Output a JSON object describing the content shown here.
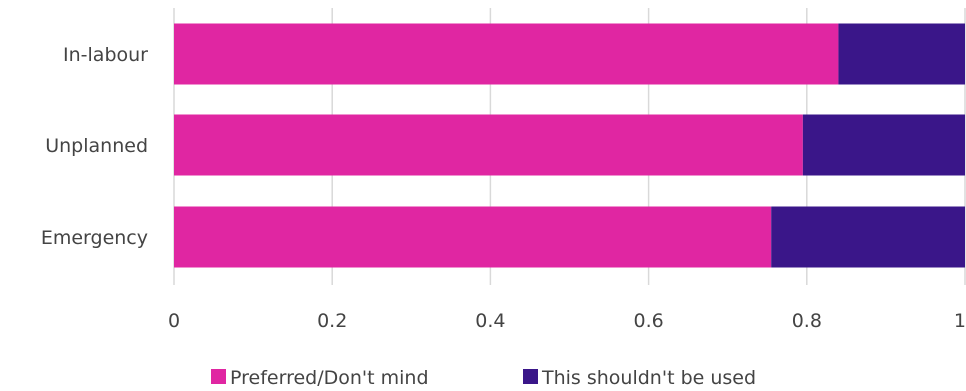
{
  "chart_data": {
    "type": "bar",
    "orientation": "horizontal",
    "stacked": true,
    "categories": [
      "In-labour",
      "Unplanned",
      "Emergency"
    ],
    "series": [
      {
        "name": "Preferred/Don't mind",
        "values": [
          0.84,
          0.795,
          0.755
        ],
        "color": "#e026a2"
      },
      {
        "name": "This shouldn't be used",
        "values": [
          0.16,
          0.205,
          0.245
        ],
        "color": "#3a1689"
      }
    ],
    "xlim": [
      0,
      1
    ],
    "x_ticks": [
      0,
      0.2,
      0.4,
      0.6,
      0.8,
      1
    ],
    "x_tick_labels": [
      "0",
      "0.2",
      "0.4",
      "0.6",
      "0.8",
      "1"
    ],
    "grid": true,
    "legend_position": "bottom"
  }
}
